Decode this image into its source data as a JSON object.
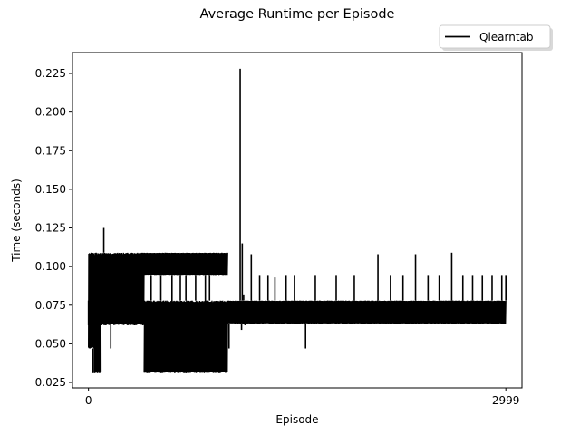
{
  "chart_data": {
    "type": "line",
    "title": "Average Runtime per Episode",
    "xlabel": "Episode",
    "ylabel": "Time (seconds)",
    "xlim": [
      -115,
      3115
    ],
    "ylim": [
      0.0215,
      0.2385
    ],
    "x_ticks": [
      0,
      2999
    ],
    "x_tick_labels": [
      "0",
      "2999"
    ],
    "y_ticks": [
      0.025,
      0.05,
      0.075,
      0.1,
      0.125,
      0.15,
      0.175,
      0.2,
      0.225
    ],
    "y_tick_labels": [
      "0.025",
      "0.050",
      "0.075",
      "0.100",
      "0.125",
      "0.150",
      "0.175",
      "0.200",
      "0.225"
    ],
    "grid": false,
    "legend": {
      "position": "upper-right-outside",
      "entries": [
        "Qlearntab"
      ]
    },
    "series": [
      {
        "name": "Qlearntab",
        "color": "#000000",
        "segments": [
          {
            "x_range": [
              0,
              40
            ],
            "band": [
              0.047,
              0.109
            ],
            "spikes": [
              [
                0,
                0.062
              ],
              [
                10,
                0.047
              ],
              [
                20,
                0.109
              ],
              [
                30,
                0.031
              ],
              [
                35,
                0.1
              ],
              [
                38,
                0.094
              ]
            ]
          },
          {
            "x_range": [
              40,
              90
            ],
            "band": [
              0.031,
              0.109
            ],
            "spikes": [
              [
                45,
                0.031
              ],
              [
                55,
                0.109
              ],
              [
                65,
                0.031
              ],
              [
                70,
                0.1
              ],
              [
                80,
                0.031
              ],
              [
                85,
                0.078
              ]
            ]
          },
          {
            "x_range": [
              90,
              130
            ],
            "band": [
              0.062,
              0.109
            ],
            "spikes": [
              [
                95,
                0.062
              ],
              [
                110,
                0.125
              ],
              [
                115,
                0.094
              ],
              [
                125,
                0.062
              ]
            ]
          },
          {
            "x_range": [
              130,
              400
            ],
            "band": [
              0.062,
              0.109
            ],
            "spikes": [
              [
                130,
                0.1
              ],
              [
                160,
                0.047
              ],
              [
                180,
                0.1
              ],
              [
                220,
                0.063
              ],
              [
                260,
                0.078
              ],
              [
                300,
                0.1
              ],
              [
                350,
                0.078
              ],
              [
                390,
                0.062
              ]
            ]
          },
          {
            "x_range": [
              400,
              1000
            ],
            "band": [
              0.094,
              0.109
            ],
            "spikes": [
              [
                420,
                0.1
              ],
              [
                450,
                0.078
              ],
              [
                520,
                0.078
              ],
              [
                600,
                0.063
              ],
              [
                660,
                0.078
              ],
              [
                700,
                0.078
              ],
              [
                770,
                0.078
              ],
              [
                840,
                0.063
              ],
              [
                870,
                0.078
              ]
            ]
          },
          {
            "x_range": [
              400,
              1000
            ],
            "band": [
              0.031,
              0.078
            ],
            "spikes": [
              [
                420,
                0.031
              ],
              [
                440,
                0.031
              ],
              [
                470,
                0.078
              ],
              [
                520,
                0.031
              ],
              [
                620,
                0.031
              ],
              [
                700,
                0.031
              ],
              [
                780,
                0.062
              ],
              [
                850,
                0.078
              ],
              [
                940,
                0.031
              ]
            ]
          },
          {
            "x_range": [
              1000,
              2999
            ],
            "band": [
              0.063,
              0.078
            ],
            "spikes": [
              [
                1010,
                0.047
              ],
              [
                1090,
                0.228
              ],
              [
                1100,
                0.059
              ],
              [
                1105,
                0.115
              ],
              [
                1110,
                0.063
              ],
              [
                1115,
                0.082
              ],
              [
                1125,
                0.062
              ],
              [
                1170,
                0.108
              ],
              [
                1230,
                0.094
              ],
              [
                1290,
                0.094
              ],
              [
                1340,
                0.093
              ],
              [
                1420,
                0.094
              ],
              [
                1480,
                0.094
              ],
              [
                1560,
                0.047
              ],
              [
                1630,
                0.094
              ],
              [
                1720,
                0.078
              ],
              [
                1780,
                0.094
              ],
              [
                1850,
                0.078
              ],
              [
                1910,
                0.094
              ],
              [
                1990,
                0.078
              ],
              [
                2080,
                0.108
              ],
              [
                2170,
                0.094
              ],
              [
                2260,
                0.094
              ],
              [
                2350,
                0.108
              ],
              [
                2440,
                0.094
              ],
              [
                2520,
                0.094
              ],
              [
                2610,
                0.109
              ],
              [
                2690,
                0.094
              ],
              [
                2760,
                0.094
              ],
              [
                2830,
                0.094
              ],
              [
                2900,
                0.094
              ],
              [
                2970,
                0.094
              ],
              [
                2999,
                0.094
              ]
            ]
          }
        ]
      }
    ]
  }
}
